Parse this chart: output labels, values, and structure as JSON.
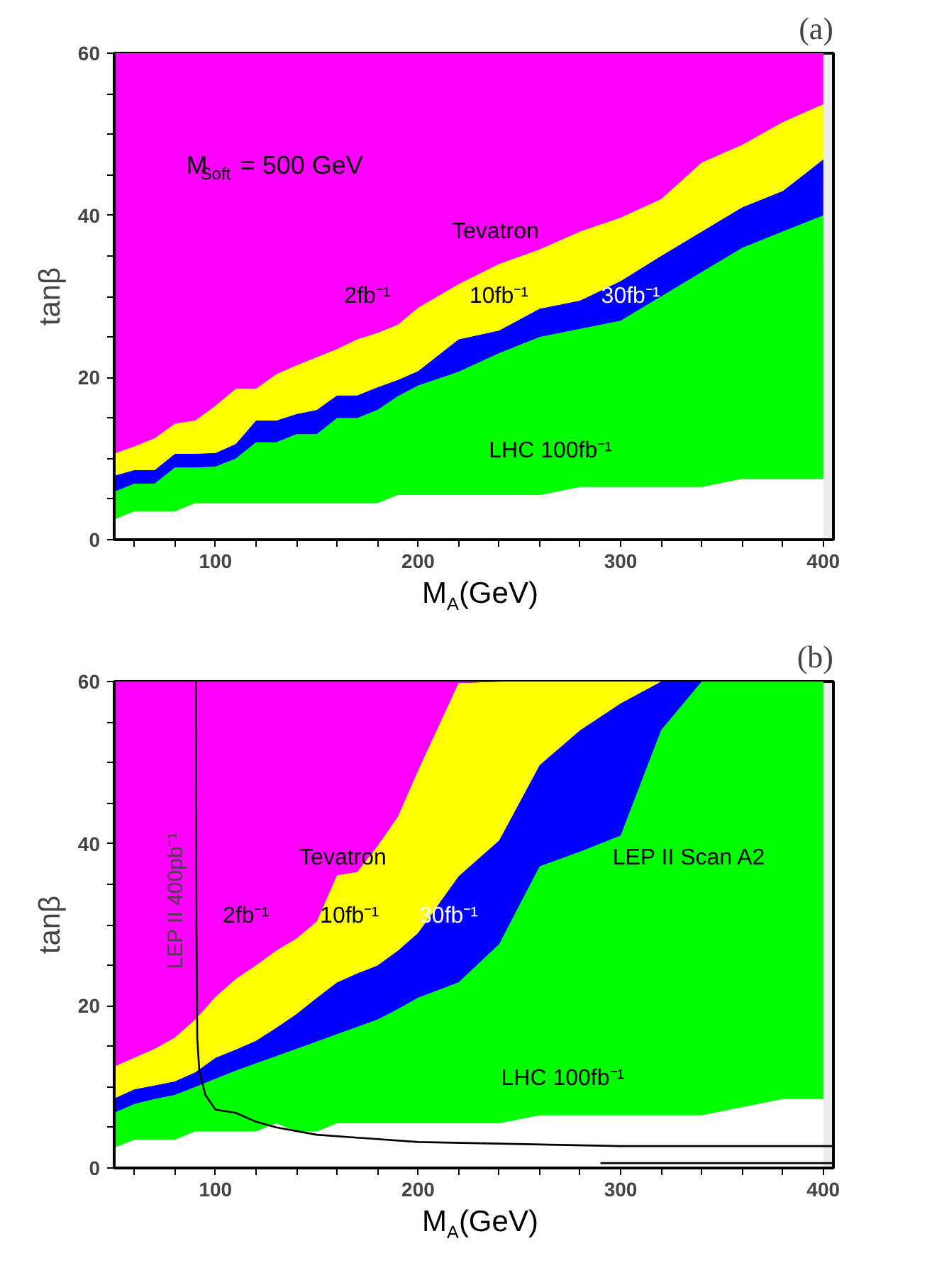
{
  "chart_data": [
    {
      "type": "area",
      "stacked": true,
      "subtitle": "(a)",
      "xlabel": "M$_{A}$(GeV)",
      "ylabel": "tanβ",
      "xlim": [
        50,
        405
      ],
      "ylim": [
        0,
        60
      ],
      "xticks": [
        {
          "value": 60,
          "label": null
        },
        {
          "value": 80,
          "label": null
        },
        100,
        {
          "value": 120,
          "label": null
        },
        {
          "value": 140,
          "label": null
        },
        {
          "value": 160,
          "label": null
        },
        {
          "value": 180,
          "label": null
        },
        200,
        {
          "value": 220,
          "label": null
        },
        {
          "value": 240,
          "label": null
        },
        {
          "value": 260,
          "label": null
        },
        {
          "value": 280,
          "label": null
        },
        300,
        {
          "value": 320,
          "label": null
        },
        {
          "value": 340,
          "label": null
        },
        {
          "value": 360,
          "label": null
        },
        {
          "value": 380,
          "label": null
        },
        400
      ],
      "yticks": [
        0,
        {
          "value": 5,
          "label": null
        },
        {
          "value": 10,
          "label": null
        },
        {
          "value": 15,
          "label": null
        },
        20,
        {
          "value": 25,
          "label": null
        },
        {
          "value": 30,
          "label": null
        },
        {
          "value": 35,
          "label": null
        },
        40,
        {
          "value": 45,
          "label": null
        },
        {
          "value": 50,
          "label": null
        },
        {
          "value": 55,
          "label": null
        },
        60
      ],
      "x": [
        50,
        60,
        70,
        80,
        90,
        100,
        110,
        120,
        130,
        140,
        150,
        160,
        170,
        180,
        190,
        200,
        220,
        240,
        260,
        280,
        300,
        320,
        340,
        360,
        380,
        400
      ],
      "series": [
        {
          "color": "#ffffff",
          "values": [
            2.5,
            3.5,
            3.5,
            3.5,
            4.5,
            4.5,
            4.5,
            4.5,
            4.5,
            4.5,
            4.5,
            4.5,
            4.5,
            4.5,
            5.5,
            5.5,
            5.5,
            5.5,
            5.5,
            6.5,
            6.5,
            6.5,
            6.5,
            7.5,
            7.5,
            7.5
          ]
        },
        {
          "color": "#00ff00",
          "values": [
            3.4,
            3.4,
            3.4,
            5.4,
            4.4,
            4.5,
            5.5,
            7.5,
            7.5,
            8.5,
            8.5,
            10.5,
            10.5,
            11.5,
            12.2,
            13.5,
            15.2,
            17.5,
            19.5,
            19.5,
            20.5,
            23.5,
            26.5,
            28.5,
            30.5,
            32.5
          ]
        },
        {
          "color": "#0000ff",
          "values": [
            2,
            1.7,
            1.7,
            1.7,
            1.7,
            1.7,
            1.8,
            2.7,
            2.7,
            2.5,
            3,
            2.8,
            2.8,
            2.8,
            2,
            1.8,
            4,
            2.8,
            3.5,
            3.5,
            4.9,
            5,
            5,
            5,
            5,
            6.9
          ]
        },
        {
          "color": "#ffff00",
          "values": [
            2.7,
            2.9,
            3.9,
            3.7,
            4.1,
            5.8,
            6.8,
            3.9,
            5.7,
            6,
            6.5,
            5.7,
            6.9,
            6.7,
            6.8,
            7.8,
            6.8,
            8.2,
            7.3,
            8.5,
            7.8,
            7,
            8.5,
            7.7,
            8.5,
            6.8
          ]
        },
        {
          "color": "#ff00ff",
          "values": [
            49.4,
            48.5,
            47.5,
            45.7,
            45.3,
            43.5,
            41.4,
            41.4,
            39.6,
            38.5,
            37.5,
            36.5,
            35.3,
            34.5,
            33.5,
            31.4,
            28.5,
            26,
            24.2,
            22,
            20.3,
            18,
            13.5,
            11.3,
            8.5,
            6.3
          ]
        }
      ],
      "annotations": [
        "M$_{Soft}$ = 500 GeV",
        "Tevatron",
        "2fb⁻¹",
        "10fb⁻¹",
        "30fb⁻¹",
        "LHC  100fb⁻¹"
      ]
    },
    {
      "type": "area",
      "stacked": true,
      "subtitle": "(b)",
      "xlabel": "M$_{A}$(GeV)",
      "ylabel": "tanβ",
      "xlim": [
        50,
        405
      ],
      "ylim": [
        0,
        60
      ],
      "xticks": [
        {
          "value": 60,
          "label": null
        },
        {
          "value": 80,
          "label": null
        },
        100,
        {
          "value": 120,
          "label": null
        },
        {
          "value": 140,
          "label": null
        },
        {
          "value": 160,
          "label": null
        },
        {
          "value": 180,
          "label": null
        },
        200,
        {
          "value": 220,
          "label": null
        },
        {
          "value": 240,
          "label": null
        },
        {
          "value": 260,
          "label": null
        },
        {
          "value": 280,
          "label": null
        },
        300,
        {
          "value": 320,
          "label": null
        },
        {
          "value": 340,
          "label": null
        },
        {
          "value": 360,
          "label": null
        },
        {
          "value": 380,
          "label": null
        },
        400
      ],
      "yticks": [
        0,
        {
          "value": 5,
          "label": null
        },
        {
          "value": 10,
          "label": null
        },
        {
          "value": 15,
          "label": null
        },
        20,
        {
          "value": 25,
          "label": null
        },
        {
          "value": 30,
          "label": null
        },
        {
          "value": 35,
          "label": null
        },
        40,
        {
          "value": 45,
          "label": null
        },
        {
          "value": 50,
          "label": null
        },
        {
          "value": 55,
          "label": null
        },
        60
      ],
      "x": [
        50,
        60,
        70,
        80,
        90,
        100,
        110,
        120,
        130,
        140,
        150,
        160,
        170,
        180,
        190,
        200,
        220,
        240,
        260,
        280,
        300,
        320,
        340,
        360,
        380,
        400
      ],
      "series": [
        {
          "color": "#ffffff",
          "values": [
            2.5,
            3.5,
            3.5,
            3.5,
            4.5,
            4.5,
            4.5,
            4.5,
            5.5,
            4.5,
            4.5,
            5.5,
            5.5,
            5.5,
            5.5,
            5.5,
            5.5,
            5.5,
            6.5,
            6.5,
            6.5,
            6.5,
            6.5,
            7.5,
            8.5,
            8.5
          ]
        },
        {
          "color": "#00ff00",
          "values": [
            4.3,
            4.4,
            5,
            5.5,
            5.5,
            6.5,
            7.5,
            8.4,
            8.3,
            10.2,
            11.1,
            11,
            11.9,
            12.8,
            14.1,
            15.5,
            17.4,
            22.1,
            30.7,
            32.5,
            34.5,
            47.5,
            53.5,
            52.5,
            51.5,
            51.5
          ]
        },
        {
          "color": "#0000ff",
          "values": [
            1.8,
            1.8,
            1.7,
            1.7,
            1.8,
            2.6,
            2.6,
            2.8,
            3.5,
            4.3,
            5.4,
            6.4,
            6.6,
            6.7,
            7.2,
            8,
            13.1,
            12.8,
            12.5,
            15,
            16.3,
            6,
            0,
            0,
            0,
            0
          ]
        },
        {
          "color": "#ffff00",
          "values": [
            3.9,
            3.9,
            4.5,
            5.4,
            6.5,
            7.5,
            8.7,
            9.3,
            9.5,
            9.3,
            9.4,
            13.2,
            12.5,
            14.7,
            16.5,
            20,
            23.8,
            19.6,
            10.3,
            6,
            2.7,
            0,
            0,
            0,
            0,
            0
          ]
        },
        {
          "color": "#ff00ff",
          "values": [
            47.5,
            46.4,
            45.3,
            43.9,
            41.7,
            38.9,
            36.7,
            35,
            33.2,
            31.7,
            29.6,
            23.9,
            23.5,
            20.3,
            16.7,
            11,
            0.2,
            0,
            0,
            0,
            0,
            0,
            0,
            0,
            0,
            0
          ]
        },
        {
          "type": "line",
          "name": "LEP II 400pb⁻¹",
          "color": "#000000",
          "x": [
            90.4,
            90.6,
            91,
            92,
            95,
            100,
            110,
            120,
            130,
            150,
            200,
            300,
            405
          ],
          "values": [
            60,
            30,
            16,
            12,
            9,
            7.2,
            6.8,
            5.7,
            5,
            4.1,
            3.2,
            2.7,
            2.7
          ]
        },
        {
          "type": "line",
          "color": "#000000",
          "x": [
            290,
            405
          ],
          "values": [
            0.6,
            0.6
          ]
        }
      ],
      "annotations": [
        "Tevatron",
        "2fb⁻¹",
        "10fb⁻¹",
        "30fb⁻¹",
        "LEP II Scan A2",
        "LHC  100fb⁻¹"
      ]
    }
  ]
}
